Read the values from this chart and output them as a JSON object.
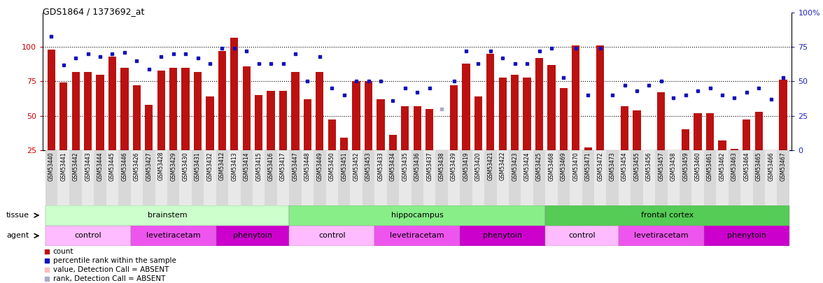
{
  "title": "GDS1864 / 1373692_at",
  "samples": [
    "GSM53440",
    "GSM53441",
    "GSM53442",
    "GSM53443",
    "GSM53444",
    "GSM53445",
    "GSM53446",
    "GSM53426",
    "GSM53427",
    "GSM53428",
    "GSM53429",
    "GSM53430",
    "GSM53431",
    "GSM53432",
    "GSM53412",
    "GSM53413",
    "GSM53414",
    "GSM53415",
    "GSM53416",
    "GSM53417",
    "GSM53447",
    "GSM53448",
    "GSM53449",
    "GSM53450",
    "GSM53451",
    "GSM53452",
    "GSM53453",
    "GSM53433",
    "GSM53434",
    "GSM53435",
    "GSM53436",
    "GSM53437",
    "GSM53438",
    "GSM53439",
    "GSM53419",
    "GSM53420",
    "GSM53421",
    "GSM53422",
    "GSM53423",
    "GSM53424",
    "GSM53425",
    "GSM53468",
    "GSM53469",
    "GSM53470",
    "GSM53471",
    "GSM53472",
    "GSM53473",
    "GSM53454",
    "GSM53455",
    "GSM53456",
    "GSM53457",
    "GSM53458",
    "GSM53459",
    "GSM53460",
    "GSM53461",
    "GSM53462",
    "GSM53463",
    "GSM53464",
    "GSM53465",
    "GSM53466",
    "GSM53467"
  ],
  "counts": [
    98,
    74,
    82,
    82,
    80,
    93,
    85,
    72,
    58,
    83,
    85,
    85,
    82,
    64,
    97,
    107,
    86,
    65,
    68,
    68,
    82,
    62,
    82,
    47,
    34,
    75,
    75,
    62,
    36,
    57,
    57,
    55,
    17,
    72,
    88,
    64,
    95,
    78,
    80,
    78,
    92,
    87,
    70,
    101,
    27,
    101,
    17,
    57,
    54,
    18,
    67,
    16,
    40,
    52,
    52,
    32,
    26,
    47,
    53,
    25,
    76
  ],
  "ranks": [
    83,
    62,
    67,
    70,
    68,
    70,
    71,
    65,
    59,
    68,
    70,
    70,
    67,
    63,
    74,
    74,
    72,
    63,
    63,
    63,
    70,
    50,
    68,
    45,
    40,
    50,
    50,
    50,
    36,
    45,
    42,
    45,
    30,
    50,
    72,
    63,
    72,
    67,
    63,
    63,
    72,
    74,
    53,
    74,
    40,
    74,
    40,
    47,
    43,
    47,
    50,
    38,
    40,
    43,
    45,
    40,
    38,
    42,
    45,
    37,
    53
  ],
  "absent_indices": [
    32
  ],
  "bar_color": "#bb1111",
  "dot_color": "#1111bb",
  "absent_bar_color": "#ffbbbb",
  "absent_dot_color": "#aaaacc",
  "ylim_left": [
    25,
    125
  ],
  "ylim_right": [
    0,
    100
  ],
  "yticks_left": [
    25,
    50,
    75,
    100
  ],
  "yticks_right": [
    0,
    25,
    50,
    75,
    100
  ],
  "left_axis_color": "#cc0000",
  "right_axis_color": "#2222bb",
  "tissue_bands": [
    {
      "label": "brainstem",
      "start": 0,
      "end": 19,
      "color": "#ccffcc"
    },
    {
      "label": "hippocampus",
      "start": 20,
      "end": 40,
      "color": "#88ee88"
    },
    {
      "label": "frontal cortex",
      "start": 41,
      "end": 60,
      "color": "#55cc55"
    }
  ],
  "agent_bands": [
    {
      "label": "control",
      "start": 0,
      "end": 6,
      "color": "#ffbbff"
    },
    {
      "label": "levetiracetam",
      "start": 7,
      "end": 13,
      "color": "#ee55ee"
    },
    {
      "label": "phenytoin",
      "start": 14,
      "end": 19,
      "color": "#cc00cc"
    },
    {
      "label": "control",
      "start": 20,
      "end": 26,
      "color": "#ffbbff"
    },
    {
      "label": "levetiracetam",
      "start": 27,
      "end": 33,
      "color": "#ee55ee"
    },
    {
      "label": "phenytoin",
      "start": 34,
      "end": 40,
      "color": "#cc00cc"
    },
    {
      "label": "control",
      "start": 41,
      "end": 46,
      "color": "#ffbbff"
    },
    {
      "label": "levetiracetam",
      "start": 47,
      "end": 53,
      "color": "#ee55ee"
    },
    {
      "label": "phenytoin",
      "start": 54,
      "end": 60,
      "color": "#cc00cc"
    }
  ],
  "legend_rows": [
    {
      "label": "count",
      "color": "#bb1111"
    },
    {
      "label": "percentile rank within the sample",
      "color": "#1111bb"
    },
    {
      "label": "value, Detection Call = ABSENT",
      "color": "#ffbbbb"
    },
    {
      "label": "rank, Detection Call = ABSENT",
      "color": "#aaaacc"
    }
  ]
}
